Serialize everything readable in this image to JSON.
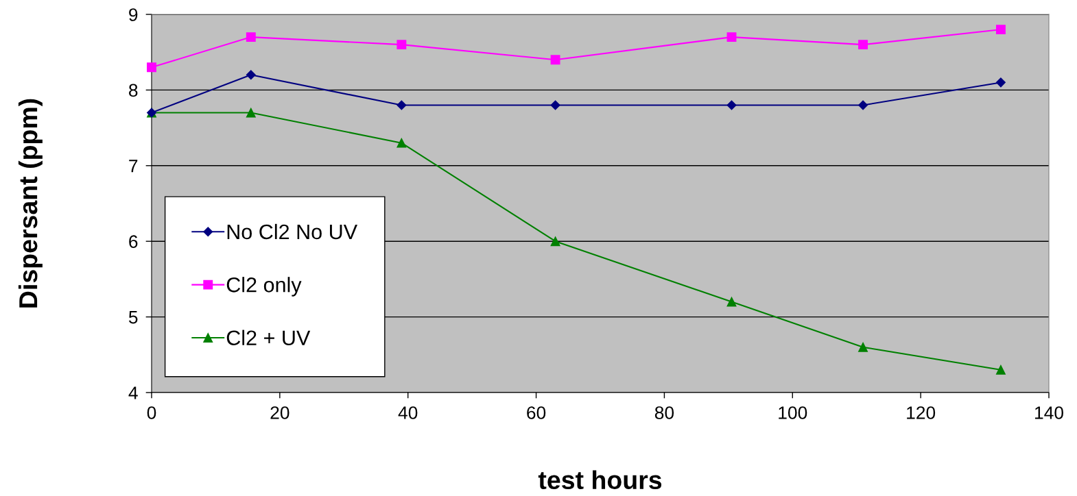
{
  "chart_data": {
    "type": "line",
    "xlabel": "test hours",
    "ylabel": "Dispersant (ppm)",
    "x": [
      0,
      15.5,
      39,
      63,
      90.5,
      111,
      132.5
    ],
    "series": [
      {
        "name": "No Cl2 No UV",
        "color": "#000080",
        "marker": "diamond",
        "values": [
          7.7,
          8.2,
          7.8,
          7.8,
          7.8,
          7.8,
          8.1
        ]
      },
      {
        "name": "Cl2 only",
        "color": "#ff00ff",
        "marker": "square",
        "values": [
          8.3,
          8.7,
          8.6,
          8.4,
          8.7,
          8.6,
          8.8
        ]
      },
      {
        "name": "Cl2 + UV",
        "color": "#008000",
        "marker": "triangle",
        "values": [
          7.7,
          7.7,
          7.3,
          6.0,
          5.2,
          4.6,
          4.3
        ]
      }
    ],
    "xlim": [
      0,
      140
    ],
    "xticks": [
      0,
      20,
      40,
      60,
      80,
      100,
      120,
      140
    ],
    "ylim": [
      4,
      9
    ],
    "yticks": [
      4,
      5,
      6,
      7,
      8,
      9
    ],
    "grid": "y",
    "legend": "left",
    "line_style": "solid"
  }
}
